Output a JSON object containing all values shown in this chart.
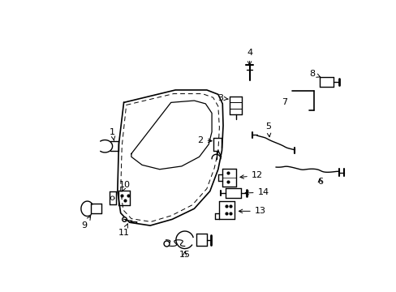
{
  "bg_color": "#ffffff",
  "line_color": "#000000",
  "lw": 1.0
}
